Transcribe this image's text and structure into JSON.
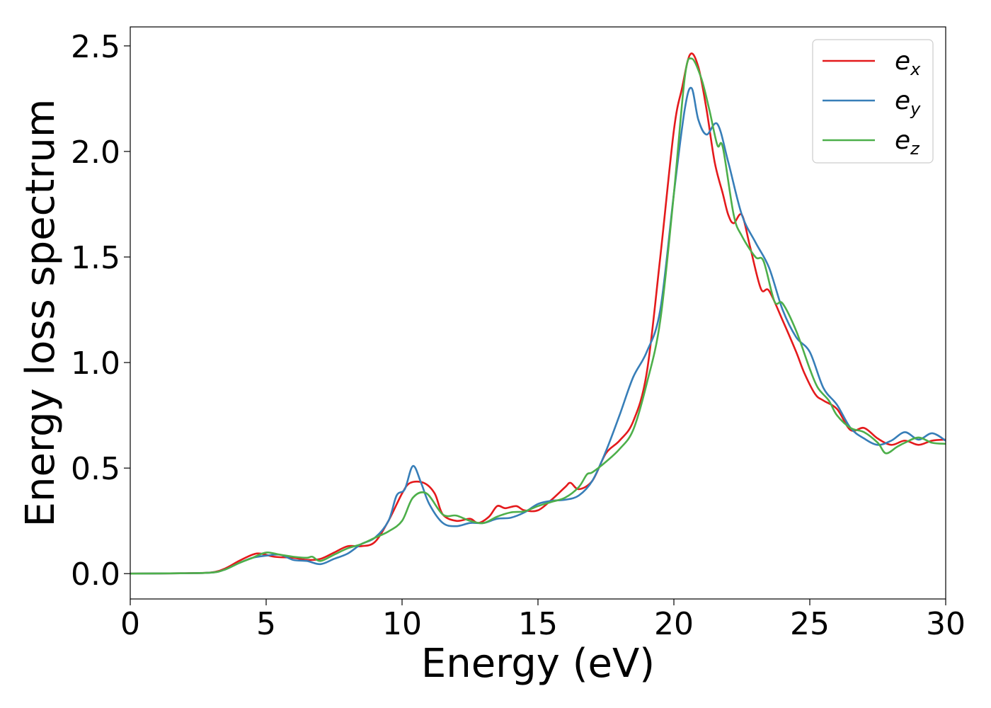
{
  "chart_data": {
    "type": "line",
    "title": "",
    "xlabel": "Energy (eV)",
    "ylabel": "Energy loss spectrum",
    "xlim": [
      0,
      30
    ],
    "ylim": [
      -0.12,
      2.59
    ],
    "xticks": [
      "0",
      "5",
      "10",
      "15",
      "20",
      "25",
      "30"
    ],
    "yticks": [
      "0.0",
      "0.5",
      "1.0",
      "1.5",
      "2.0",
      "2.5"
    ],
    "grid": false,
    "legend_position": "top-right",
    "series": [
      {
        "name": "e",
        "subscript": "x",
        "color": "#e41a1c",
        "points": [
          [
            0,
            0
          ],
          [
            2,
            0.002
          ],
          [
            3,
            0.006
          ],
          [
            3.5,
            0.025
          ],
          [
            4,
            0.06
          ],
          [
            4.5,
            0.09
          ],
          [
            4.8,
            0.095
          ],
          [
            5.3,
            0.08
          ],
          [
            6,
            0.075
          ],
          [
            6.5,
            0.065
          ],
          [
            7,
            0.07
          ],
          [
            7.5,
            0.1
          ],
          [
            8,
            0.13
          ],
          [
            8.5,
            0.13
          ],
          [
            9,
            0.15
          ],
          [
            9.5,
            0.25
          ],
          [
            10,
            0.38
          ],
          [
            10.3,
            0.43
          ],
          [
            10.8,
            0.43
          ],
          [
            11.2,
            0.38
          ],
          [
            11.5,
            0.28
          ],
          [
            12,
            0.25
          ],
          [
            12.5,
            0.26
          ],
          [
            12.8,
            0.24
          ],
          [
            13.2,
            0.27
          ],
          [
            13.5,
            0.32
          ],
          [
            13.8,
            0.31
          ],
          [
            14.2,
            0.32
          ],
          [
            14.5,
            0.3
          ],
          [
            15,
            0.3
          ],
          [
            15.5,
            0.35
          ],
          [
            16,
            0.41
          ],
          [
            16.2,
            0.43
          ],
          [
            16.5,
            0.4
          ],
          [
            17,
            0.44
          ],
          [
            17.5,
            0.57
          ],
          [
            18,
            0.63
          ],
          [
            18.5,
            0.72
          ],
          [
            19,
            0.95
          ],
          [
            19.5,
            1.5
          ],
          [
            20,
            2.1
          ],
          [
            20.3,
            2.3
          ],
          [
            20.6,
            2.46
          ],
          [
            20.9,
            2.4
          ],
          [
            21.2,
            2.2
          ],
          [
            21.5,
            1.95
          ],
          [
            21.8,
            1.8
          ],
          [
            22,
            1.7
          ],
          [
            22.2,
            1.66
          ],
          [
            22.5,
            1.7
          ],
          [
            22.8,
            1.55
          ],
          [
            23.2,
            1.35
          ],
          [
            23.5,
            1.34
          ],
          [
            24,
            1.2
          ],
          [
            24.5,
            1.05
          ],
          [
            24.8,
            0.95
          ],
          [
            25.2,
            0.85
          ],
          [
            25.5,
            0.82
          ],
          [
            26,
            0.78
          ],
          [
            26.5,
            0.68
          ],
          [
            27,
            0.69
          ],
          [
            27.5,
            0.64
          ],
          [
            28,
            0.61
          ],
          [
            28.5,
            0.63
          ],
          [
            29,
            0.61
          ],
          [
            29.5,
            0.63
          ],
          [
            30,
            0.635
          ]
        ]
      },
      {
        "name": "e",
        "subscript": "y",
        "color": "#377eb8",
        "points": [
          [
            0,
            0
          ],
          [
            2,
            0.002
          ],
          [
            3,
            0.005
          ],
          [
            3.5,
            0.02
          ],
          [
            4,
            0.05
          ],
          [
            4.5,
            0.075
          ],
          [
            5,
            0.085
          ],
          [
            5.5,
            0.09
          ],
          [
            6,
            0.065
          ],
          [
            6.5,
            0.06
          ],
          [
            7,
            0.045
          ],
          [
            7.5,
            0.07
          ],
          [
            8,
            0.095
          ],
          [
            8.5,
            0.14
          ],
          [
            9,
            0.17
          ],
          [
            9.5,
            0.25
          ],
          [
            9.8,
            0.37
          ],
          [
            10.1,
            0.4
          ],
          [
            10.4,
            0.51
          ],
          [
            10.7,
            0.43
          ],
          [
            11,
            0.33
          ],
          [
            11.5,
            0.24
          ],
          [
            12,
            0.225
          ],
          [
            12.5,
            0.24
          ],
          [
            13,
            0.24
          ],
          [
            13.5,
            0.26
          ],
          [
            14,
            0.265
          ],
          [
            14.5,
            0.29
          ],
          [
            15,
            0.33
          ],
          [
            15.5,
            0.345
          ],
          [
            16,
            0.35
          ],
          [
            16.5,
            0.37
          ],
          [
            17,
            0.44
          ],
          [
            17.5,
            0.58
          ],
          [
            18,
            0.75
          ],
          [
            18.5,
            0.93
          ],
          [
            19,
            1.05
          ],
          [
            19.5,
            1.25
          ],
          [
            20,
            1.8
          ],
          [
            20.4,
            2.2
          ],
          [
            20.65,
            2.3
          ],
          [
            20.9,
            2.15
          ],
          [
            21.2,
            2.08
          ],
          [
            21.6,
            2.13
          ],
          [
            22,
            1.95
          ],
          [
            22.5,
            1.7
          ],
          [
            23,
            1.57
          ],
          [
            23.5,
            1.45
          ],
          [
            24,
            1.25
          ],
          [
            24.5,
            1.12
          ],
          [
            25,
            1.05
          ],
          [
            25.5,
            0.88
          ],
          [
            26,
            0.8
          ],
          [
            26.5,
            0.69
          ],
          [
            27,
            0.64
          ],
          [
            27.5,
            0.61
          ],
          [
            28,
            0.63
          ],
          [
            28.5,
            0.67
          ],
          [
            29,
            0.635
          ],
          [
            29.5,
            0.665
          ],
          [
            30,
            0.63
          ]
        ]
      },
      {
        "name": "e",
        "subscript": "z",
        "color": "#4daf4a",
        "points": [
          [
            0,
            0
          ],
          [
            2,
            0.002
          ],
          [
            3,
            0.005
          ],
          [
            3.5,
            0.02
          ],
          [
            4,
            0.05
          ],
          [
            4.5,
            0.075
          ],
          [
            5,
            0.1
          ],
          [
            5.5,
            0.09
          ],
          [
            6,
            0.08
          ],
          [
            6.5,
            0.075
          ],
          [
            6.7,
            0.08
          ],
          [
            7,
            0.06
          ],
          [
            7.5,
            0.09
          ],
          [
            8,
            0.12
          ],
          [
            8.5,
            0.14
          ],
          [
            9,
            0.17
          ],
          [
            9.5,
            0.2
          ],
          [
            10,
            0.25
          ],
          [
            10.4,
            0.36
          ],
          [
            10.9,
            0.38
          ],
          [
            11.5,
            0.28
          ],
          [
            12,
            0.275
          ],
          [
            12.5,
            0.25
          ],
          [
            13,
            0.24
          ],
          [
            13.5,
            0.27
          ],
          [
            14,
            0.29
          ],
          [
            14.5,
            0.295
          ],
          [
            15,
            0.32
          ],
          [
            15.5,
            0.34
          ],
          [
            16,
            0.36
          ],
          [
            16.5,
            0.41
          ],
          [
            16.8,
            0.47
          ],
          [
            17,
            0.48
          ],
          [
            17.5,
            0.53
          ],
          [
            18,
            0.59
          ],
          [
            18.5,
            0.68
          ],
          [
            19,
            0.9
          ],
          [
            19.5,
            1.2
          ],
          [
            20,
            1.8
          ],
          [
            20.4,
            2.35
          ],
          [
            20.65,
            2.44
          ],
          [
            21,
            2.35
          ],
          [
            21.3,
            2.2
          ],
          [
            21.6,
            2.03
          ],
          [
            21.8,
            2.02
          ],
          [
            22.2,
            1.7
          ],
          [
            22.5,
            1.6
          ],
          [
            23,
            1.5
          ],
          [
            23.3,
            1.48
          ],
          [
            23.7,
            1.29
          ],
          [
            24,
            1.28
          ],
          [
            24.5,
            1.15
          ],
          [
            25,
            0.97
          ],
          [
            25.3,
            0.88
          ],
          [
            25.7,
            0.82
          ],
          [
            26,
            0.75
          ],
          [
            26.5,
            0.69
          ],
          [
            27,
            0.67
          ],
          [
            27.5,
            0.62
          ],
          [
            27.8,
            0.57
          ],
          [
            28.2,
            0.6
          ],
          [
            28.5,
            0.62
          ],
          [
            29,
            0.645
          ],
          [
            29.5,
            0.62
          ],
          [
            30,
            0.615
          ]
        ]
      }
    ]
  }
}
